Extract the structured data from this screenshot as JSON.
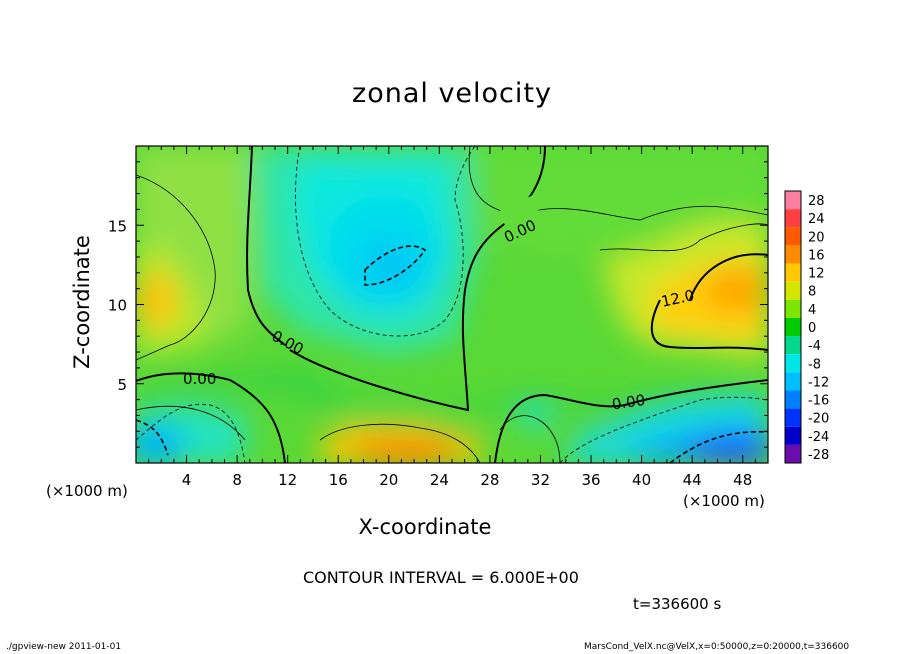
{
  "chart_data": {
    "type": "heatmap",
    "title": "zonal velocity",
    "xlabel": "X-coordinate",
    "ylabel": "Z-coordinate",
    "x_unit_label": "(×1000 m)",
    "x_ticks": [
      4,
      8,
      12,
      16,
      20,
      24,
      28,
      32,
      36,
      40,
      44,
      48
    ],
    "y_ticks": [
      5,
      10,
      15
    ],
    "xlim": [
      0,
      50
    ],
    "ylim": [
      0,
      20
    ],
    "colorbar_ticks": [
      28,
      24,
      20,
      16,
      12,
      8,
      4,
      0,
      -4,
      -8,
      -12,
      -16,
      -20,
      -24,
      -28
    ],
    "contour_labels": [
      "0.00",
      "0.00",
      "0.00",
      "0.00",
      "12.0"
    ],
    "regions": [
      {
        "x": 17,
        "z": 15,
        "value": -8
      },
      {
        "x": 20,
        "z": 13,
        "value": -12
      },
      {
        "x": 2,
        "z": 11,
        "value": 14
      },
      {
        "x": 44,
        "z": 11,
        "value": 14
      },
      {
        "x": 20,
        "z": 1.5,
        "value": 16
      },
      {
        "x": 44,
        "z": 1.5,
        "value": -14
      },
      {
        "x": 4,
        "z": 1.5,
        "value": -10
      },
      {
        "x": 30,
        "z": 10,
        "value": 2
      }
    ]
  },
  "colorbar_colors": [
    "#ff7f9f",
    "#ff4040",
    "#ff5a00",
    "#ff8c00",
    "#ffc800",
    "#d4e600",
    "#7ce600",
    "#00cc00",
    "#00d98c",
    "#00e6e6",
    "#00bfff",
    "#0080ff",
    "#0033ff",
    "#0000cc",
    "#6a0dad"
  ],
  "annotations": {
    "contour_interval": "CONTOUR INTERVAL = 6.000E+00",
    "time": "t=336600 s"
  },
  "footer": {
    "left": "./gpview-new   2011-01-01",
    "right": "MarsCond_VelX.nc@VelX,x=0:50000,z=0:20000,t=336600"
  }
}
